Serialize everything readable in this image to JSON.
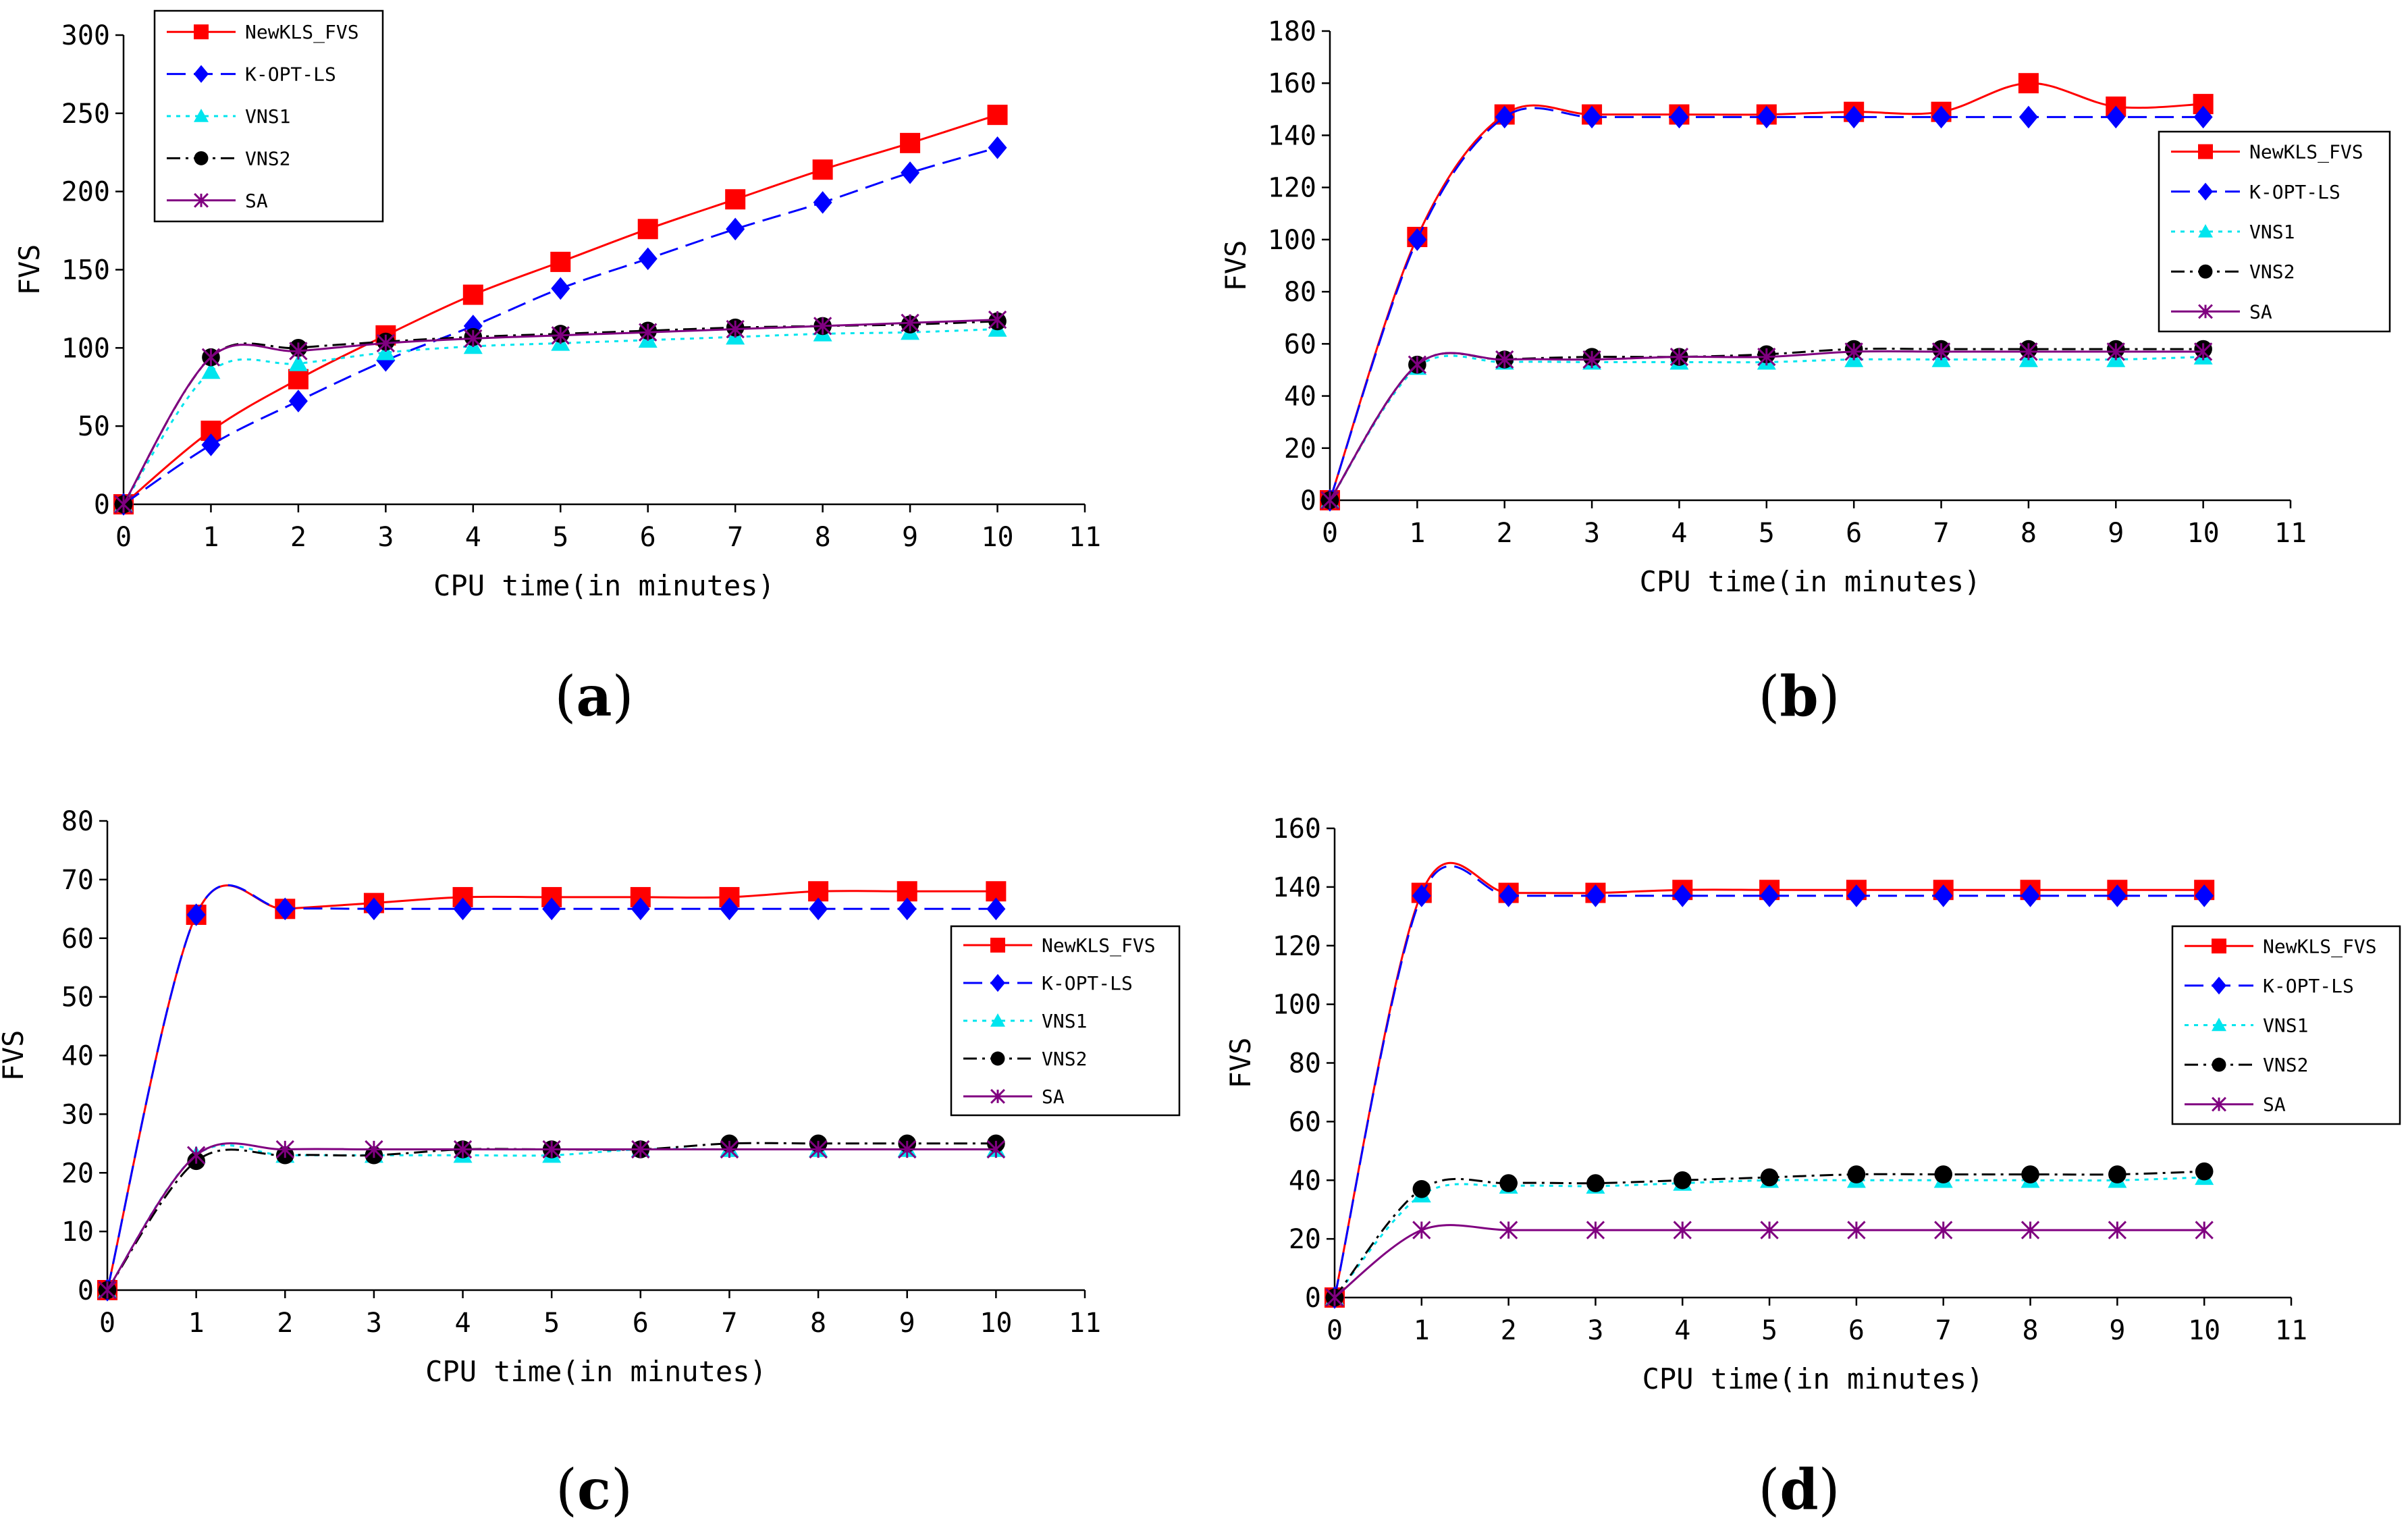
{
  "chart_data": [
    {
      "type": "line",
      "panel_label": "a",
      "xlabel": "CPU time(in minutes)",
      "ylabel": "FVS",
      "xlim": [
        0,
        11
      ],
      "ylim": [
        0,
        300
      ],
      "xticks": [
        0,
        1,
        2,
        3,
        4,
        5,
        6,
        7,
        8,
        9,
        10,
        11
      ],
      "yticks": [
        0,
        50,
        100,
        150,
        200,
        250,
        300
      ],
      "legend_position": "top-left",
      "x": [
        0,
        1,
        2,
        3,
        4,
        5,
        6,
        7,
        8,
        9,
        10
      ],
      "series": [
        {
          "name": "NewKLS_FVS",
          "values": [
            0,
            47,
            80,
            108,
            134,
            155,
            176,
            195,
            214,
            231,
            249
          ]
        },
        {
          "name": "K-OPT-LS",
          "values": [
            0,
            38,
            66,
            92,
            114,
            138,
            157,
            176,
            193,
            212,
            228
          ]
        },
        {
          "name": "VNS1",
          "values": [
            0,
            85,
            90,
            97,
            101,
            103,
            105,
            107,
            109,
            110,
            112
          ]
        },
        {
          "name": "VNS2",
          "values": [
            0,
            94,
            100,
            104,
            107,
            109,
            111,
            113,
            114,
            115,
            117
          ]
        },
        {
          "name": "SA",
          "values": [
            0,
            94,
            98,
            103,
            106,
            108,
            110,
            112,
            114,
            116,
            118
          ]
        }
      ]
    },
    {
      "type": "line",
      "panel_label": "b",
      "xlabel": "CPU time(in minutes)",
      "ylabel": "FVS",
      "xlim": [
        0,
        11
      ],
      "ylim": [
        0,
        180
      ],
      "xticks": [
        0,
        1,
        2,
        3,
        4,
        5,
        6,
        7,
        8,
        9,
        10,
        11
      ],
      "yticks": [
        0,
        20,
        40,
        60,
        80,
        100,
        120,
        140,
        160,
        180
      ],
      "legend_position": "right",
      "x": [
        0,
        1,
        2,
        3,
        4,
        5,
        6,
        7,
        8,
        9,
        10
      ],
      "series": [
        {
          "name": "NewKLS_FVS",
          "values": [
            0,
            101,
            148,
            148,
            148,
            148,
            149,
            149,
            160,
            151,
            152
          ]
        },
        {
          "name": "K-OPT-LS",
          "values": [
            0,
            100,
            147,
            147,
            147,
            147,
            147,
            147,
            147,
            147,
            147
          ]
        },
        {
          "name": "VNS1",
          "values": [
            0,
            51,
            53,
            53,
            53,
            53,
            54,
            54,
            54,
            54,
            55
          ]
        },
        {
          "name": "VNS2",
          "values": [
            0,
            52,
            54,
            55,
            55,
            56,
            58,
            58,
            58,
            58,
            58
          ]
        },
        {
          "name": "SA",
          "values": [
            0,
            52,
            54,
            54,
            55,
            55,
            57,
            57,
            57,
            57,
            57
          ]
        }
      ]
    },
    {
      "type": "line",
      "panel_label": "c",
      "xlabel": "CPU time(in minutes)",
      "ylabel": "FVS",
      "xlim": [
        0,
        11
      ],
      "ylim": [
        0,
        80
      ],
      "xticks": [
        0,
        1,
        2,
        3,
        4,
        5,
        6,
        7,
        8,
        9,
        10,
        11
      ],
      "yticks": [
        0,
        10,
        20,
        30,
        40,
        50,
        60,
        70,
        80
      ],
      "legend_position": "right",
      "x": [
        0,
        1,
        2,
        3,
        4,
        5,
        6,
        7,
        8,
        9,
        10
      ],
      "series": [
        {
          "name": "NewKLS_FVS",
          "values": [
            0,
            64,
            65,
            66,
            67,
            67,
            67,
            67,
            68,
            68,
            68
          ]
        },
        {
          "name": "K-OPT-LS",
          "values": [
            0,
            64,
            65,
            65,
            65,
            65,
            65,
            65,
            65,
            65,
            65
          ]
        },
        {
          "name": "VNS1",
          "values": [
            0,
            23,
            23,
            23,
            23,
            23,
            24,
            24,
            24,
            24,
            24
          ]
        },
        {
          "name": "VNS2",
          "values": [
            0,
            22,
            23,
            23,
            24,
            24,
            24,
            25,
            25,
            25,
            25
          ]
        },
        {
          "name": "SA",
          "values": [
            0,
            23,
            24,
            24,
            24,
            24,
            24,
            24,
            24,
            24,
            24
          ]
        }
      ]
    },
    {
      "type": "line",
      "panel_label": "d",
      "xlabel": "CPU time(in minutes)",
      "ylabel": "FVS",
      "xlim": [
        0,
        11
      ],
      "ylim": [
        0,
        160
      ],
      "xticks": [
        0,
        1,
        2,
        3,
        4,
        5,
        6,
        7,
        8,
        9,
        10,
        11
      ],
      "yticks": [
        0,
        20,
        40,
        60,
        80,
        100,
        120,
        140,
        160
      ],
      "legend_position": "right",
      "x": [
        0,
        1,
        2,
        3,
        4,
        5,
        6,
        7,
        8,
        9,
        10
      ],
      "series": [
        {
          "name": "NewKLS_FVS",
          "values": [
            0,
            138,
            138,
            138,
            139,
            139,
            139,
            139,
            139,
            139,
            139
          ]
        },
        {
          "name": "K-OPT-LS",
          "values": [
            0,
            137,
            137,
            137,
            137,
            137,
            137,
            137,
            137,
            137,
            137
          ]
        },
        {
          "name": "VNS1",
          "values": [
            0,
            35,
            38,
            38,
            39,
            40,
            40,
            40,
            40,
            40,
            41
          ]
        },
        {
          "name": "VNS2",
          "values": [
            0,
            37,
            39,
            39,
            40,
            41,
            42,
            42,
            42,
            42,
            43
          ]
        },
        {
          "name": "SA",
          "values": [
            0,
            23,
            23,
            23,
            23,
            23,
            23,
            23,
            23,
            23,
            23
          ]
        }
      ]
    }
  ],
  "series_styles": {
    "NewKLS_FVS": {
      "color": "#ff0000",
      "marker": "square",
      "dash": "solid"
    },
    "K-OPT-LS": {
      "color": "#0000ff",
      "marker": "diamond",
      "dash": "long-dash"
    },
    "VNS1": {
      "color": "#00e5ee",
      "marker": "triangle",
      "dash": "dotted"
    },
    "VNS2": {
      "color": "#000000",
      "marker": "circle",
      "dash": "dash-dot"
    },
    "SA": {
      "color": "#800080",
      "marker": "star",
      "dash": "solid"
    }
  }
}
